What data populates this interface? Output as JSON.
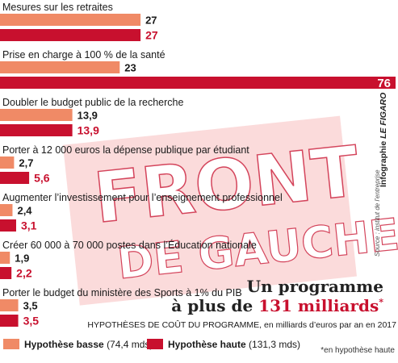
{
  "chart_data": {
    "type": "bar",
    "orientation": "horizontal",
    "categories": [
      "Mesures sur les retraites",
      "Prise en charge à 100 % de la santé",
      "Doubler le budget public de la recherche",
      "Porter à 12 000 euros la dépense publique par étudiant",
      "Augmenter l’investissement pour l’enseignement professionnel",
      "Créer  60 000 à 70 000 postes dans l’Éducation nationale",
      "Porter le budget du ministère des Sports à 1% du PIB"
    ],
    "series": [
      {
        "name": "Hypothèse basse",
        "extra": "(74,4 mds)",
        "color": "#f08a66",
        "values": [
          27,
          23,
          13.9,
          2.7,
          2.4,
          1.9,
          3.5
        ],
        "labels": [
          "27",
          "23",
          "13,9",
          "2,7",
          "2,4",
          "1,9",
          "3,5"
        ]
      },
      {
        "name": "Hypothèse haute",
        "extra": "(131,3 mds)",
        "color": "#c8102e",
        "values": [
          27,
          76,
          13.9,
          5.6,
          3.1,
          2.2,
          3.5
        ],
        "labels": [
          "27",
          "76",
          "13,9",
          "5,6",
          "3,1",
          "2,2",
          "3,5"
        ]
      }
    ],
    "xlim": [
      0,
      76
    ],
    "legend_position": "bottom-left"
  },
  "stamp": {
    "line1": "FRONT",
    "line2": "DE GAUCHE"
  },
  "headline": {
    "line1": "Un programme",
    "prefix": "à plus de ",
    "amount": "131 milliards",
    "asterisk": "*"
  },
  "subheadline": "HYPOTHÈSES DE COÛT DU PROGRAMME, en milliards d’euros par an  en 2017",
  "footnote": "*en hypothèse haute",
  "credit": {
    "label": "Infographie ",
    "brand": "LE FIGARO"
  },
  "source": "Source : institut de l’entreprise"
}
